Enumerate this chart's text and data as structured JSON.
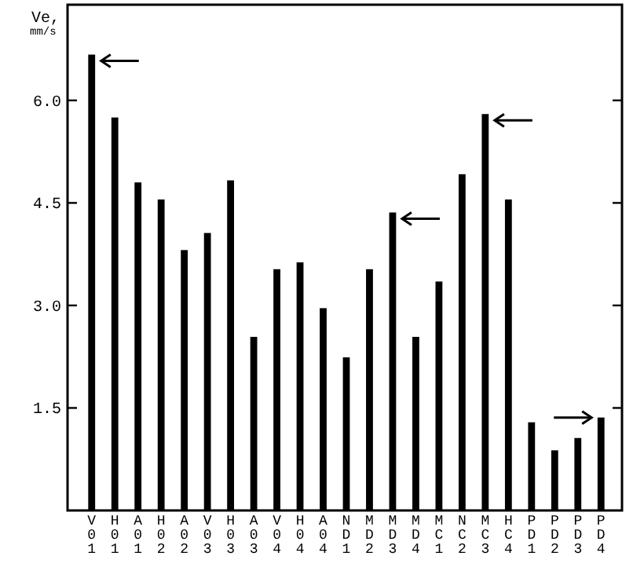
{
  "chart_data": {
    "type": "bar",
    "ylabel": "Ve, mm/s",
    "categories": [
      "V01",
      "H01",
      "A01",
      "H02",
      "A02",
      "V03",
      "H03",
      "A03",
      "V04",
      "H04",
      "A04",
      "ND1",
      "MD2",
      "MD3",
      "MD4",
      "MC1",
      "NC2",
      "MC3",
      "HC4",
      "PD1",
      "PD2",
      "PD3",
      "PD4"
    ],
    "values": [
      6.67,
      5.75,
      4.8,
      4.55,
      3.81,
      4.06,
      4.83,
      2.54,
      3.53,
      3.63,
      2.96,
      2.24,
      3.53,
      4.36,
      2.54,
      3.35,
      4.92,
      5.8,
      4.55,
      1.29,
      0.88,
      1.06,
      1.36
    ],
    "color": "#000000",
    "ylim": [
      0,
      7.4
    ],
    "yticks": [
      {
        "value": 1.5,
        "label": "1.5"
      },
      {
        "value": 3,
        "label": "3.0"
      },
      {
        "value": 4.5,
        "label": "4.5"
      },
      {
        "value": 6,
        "label": "6.0"
      }
    ],
    "grid": false
  }
}
